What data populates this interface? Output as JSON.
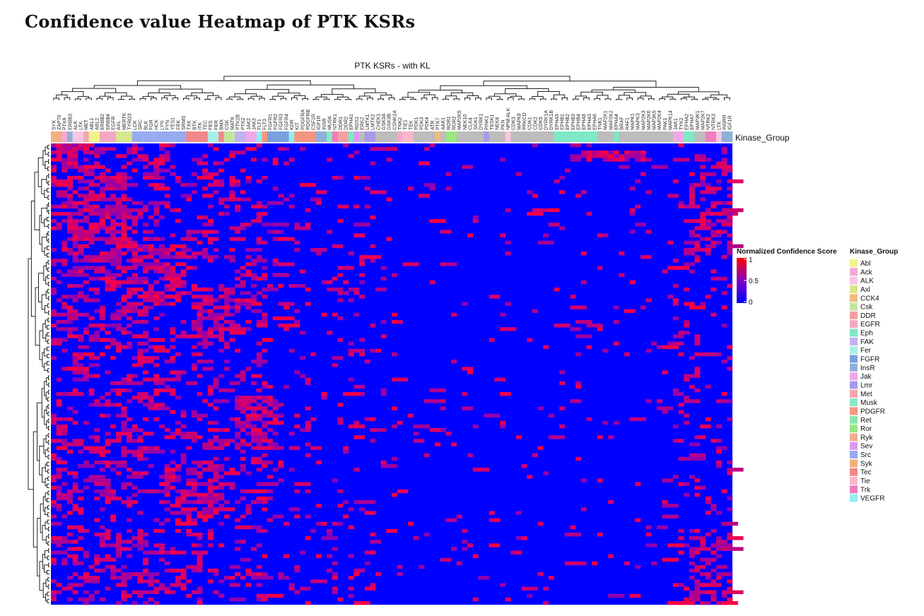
{
  "page_title": "Confidence value Heatmap of PTK KSRs",
  "chart_data": {
    "type": "heatmap",
    "title": "PTK KSRs - with KL",
    "annotation_label": "Kinase_Group",
    "columns": [
      "SYK",
      "ZAP70",
      "PTK6",
      "ERBB3",
      "ALK",
      "LTK",
      "MET",
      "ABL1",
      "ABL2",
      "ERBB2",
      "ERBB4",
      "EGFR",
      "AXL",
      "MERTK",
      "TYRO3",
      "LCK",
      "SRC",
      "BLK",
      "FGR",
      "HCK",
      "LYN",
      "FYN",
      "YES1",
      "FRK",
      "SRMS",
      "TXK",
      "BTK",
      "ITK",
      "TEC",
      "FES",
      "FER",
      "BMX",
      "CSK",
      "MATK",
      "PTK2B",
      "PTK2",
      "JAK2",
      "JAK3",
      "FLT1",
      "FLT3",
      "FGFR1",
      "FGFR2",
      "FGFR3",
      "FGFR4",
      "KDR",
      "KIT",
      "PDGFRA",
      "PDGFRB",
      "CSF1R",
      "IGF1R",
      "INSR",
      "MUSK",
      "NTRK1",
      "DDR1",
      "DDR2",
      "EPHA1",
      "ROS1",
      "ERK2",
      "LMTK1",
      "LMTK2",
      "CHEK1",
      "GSK3A",
      "GSK3B",
      "CSNK2A",
      "TNK2",
      "TIE1",
      "TEK",
      "PDK1",
      "PDK3",
      "PDK4",
      "ATR",
      "PTK7",
      "AAK1",
      "ROR1",
      "ROR2",
      "MAP2K5",
      "NEK10",
      "CLK4",
      "SGK1",
      "DYRK1",
      "PINK1",
      "TESK1",
      "NEK6",
      "PKN",
      "NPM-ALK",
      "CDK3",
      "MAPK8",
      "PRKCD",
      "CDK1",
      "CDK2",
      "CDK5",
      "DYRK1A",
      "DYRK1B",
      "EPHA5",
      "EPHB1",
      "EPHB2",
      "EPHB3",
      "EPHB4",
      "EPHA8",
      "EPHA3",
      "EPHA6",
      "TNK1",
      "MAP2K1",
      "MAP2K2",
      "EPHA4",
      "BRAF",
      "RAF1",
      "MAPK1",
      "MAPK3",
      "MAP2K3",
      "MAP2K6",
      "MAP3K5",
      "MAP2K4",
      "PAK1",
      "MAPK14",
      "JAK1",
      "TYK2",
      "EPHA2",
      "EPHA7",
      "MAP3K1",
      "MAP2K7",
      "NTRK2",
      "NTRK3",
      "LTK",
      "INSRR",
      "IGF1R"
    ],
    "n_rows": 128,
    "value_range": [
      0,
      1
    ],
    "colorbar": {
      "title": "Normalized Confidence Score",
      "ticks": [
        "1",
        "0.5",
        "0"
      ],
      "colors": [
        "#ff0000",
        "#8000c0",
        "#0000ff"
      ]
    },
    "legend": {
      "title": "Kinase_Group",
      "groups": [
        {
          "name": "Abl",
          "color": "#f3f38b"
        },
        {
          "name": "Ack",
          "color": "#f4a8d2"
        },
        {
          "name": "ALK",
          "color": "#f8c6e1"
        },
        {
          "name": "Axl",
          "color": "#d8e68c"
        },
        {
          "name": "CCK4",
          "color": "#f2bb82"
        },
        {
          "name": "Csk",
          "color": "#c3e69f"
        },
        {
          "name": "DDR",
          "color": "#f2a0a0"
        },
        {
          "name": "EGFR",
          "color": "#f2a8c4"
        },
        {
          "name": "Eph",
          "color": "#7ee8c8"
        },
        {
          "name": "FAK",
          "color": "#c0b2ef"
        },
        {
          "name": "Fer",
          "color": "#a8f0e6"
        },
        {
          "name": "FGFR",
          "color": "#7aa0dc"
        },
        {
          "name": "InsR",
          "color": "#8fb0d8"
        },
        {
          "name": "Jak",
          "color": "#f0a8e6"
        },
        {
          "name": "Lmr",
          "color": "#a89ae8"
        },
        {
          "name": "Met",
          "color": "#f4a6b0"
        },
        {
          "name": "Musk",
          "color": "#88e8c6"
        },
        {
          "name": "PDGFR",
          "color": "#f59680"
        },
        {
          "name": "Ret",
          "color": "#8ae6a6"
        },
        {
          "name": "Ror",
          "color": "#9ae680"
        },
        {
          "name": "Ryk",
          "color": "#f2ae8c"
        },
        {
          "name": "Sev",
          "color": "#dc98f2"
        },
        {
          "name": "Src",
          "color": "#98aaf2"
        },
        {
          "name": "Syk",
          "color": "#f2b080"
        },
        {
          "name": "Tec",
          "color": "#f08888"
        },
        {
          "name": "Tie",
          "color": "#f8b8c8"
        },
        {
          "name": "Trk",
          "color": "#ee7ebe"
        },
        {
          "name": "VEGFR",
          "color": "#92eef0"
        }
      ]
    },
    "column_groups": [
      "Syk",
      "Syk",
      "Ack",
      "InsR",
      "ALK",
      "ALK",
      "Met",
      "Abl",
      "Abl",
      "EGFR",
      "EGFR",
      "EGFR",
      "Axl",
      "Axl",
      "Axl",
      "Src",
      "Src",
      "Src",
      "Src",
      "Src",
      "Src",
      "Src",
      "Src",
      "Src",
      "Src",
      "Tec",
      "Tec",
      "Tec",
      "Tec",
      "Fer",
      "Fer",
      "Tec",
      "Csk",
      "Csk",
      "FAK",
      "FAK",
      "Jak",
      "Jak",
      "VEGFR",
      "PDGFR",
      "FGFR",
      "FGFR",
      "FGFR",
      "FGFR",
      "VEGFR",
      "PDGFR",
      "PDGFR",
      "PDGFR",
      "PDGFR",
      "InsR",
      "InsR",
      "Musk",
      "Trk",
      "DDR",
      "DDR",
      "Eph",
      "Sev",
      "Other",
      "Lmr",
      "Lmr",
      "Other",
      "Other",
      "Other",
      "Other",
      "Ack",
      "Tie",
      "Tie",
      "Other",
      "Other",
      "Other",
      "Other",
      "CCK4",
      "Other",
      "Ror",
      "Ror",
      "Other",
      "Other",
      "Other",
      "Other",
      "Other",
      "Lmr",
      "Other",
      "Other",
      "Other",
      "ALK",
      "Other",
      "Other",
      "Other",
      "Other",
      "Other",
      "Other",
      "Other",
      "Other",
      "Eph",
      "Eph",
      "Eph",
      "Eph",
      "Eph",
      "Eph",
      "Eph",
      "Eph",
      "Other",
      "Other",
      "Other",
      "Eph",
      "Other",
      "Other",
      "Other",
      "Other",
      "Other",
      "Other",
      "Other",
      "Other",
      "Other",
      "Other",
      "Jak",
      "Jak",
      "Eph",
      "Eph",
      "Other",
      "Other",
      "Trk",
      "Trk",
      "ALK",
      "InsR",
      "InsR"
    ]
  }
}
